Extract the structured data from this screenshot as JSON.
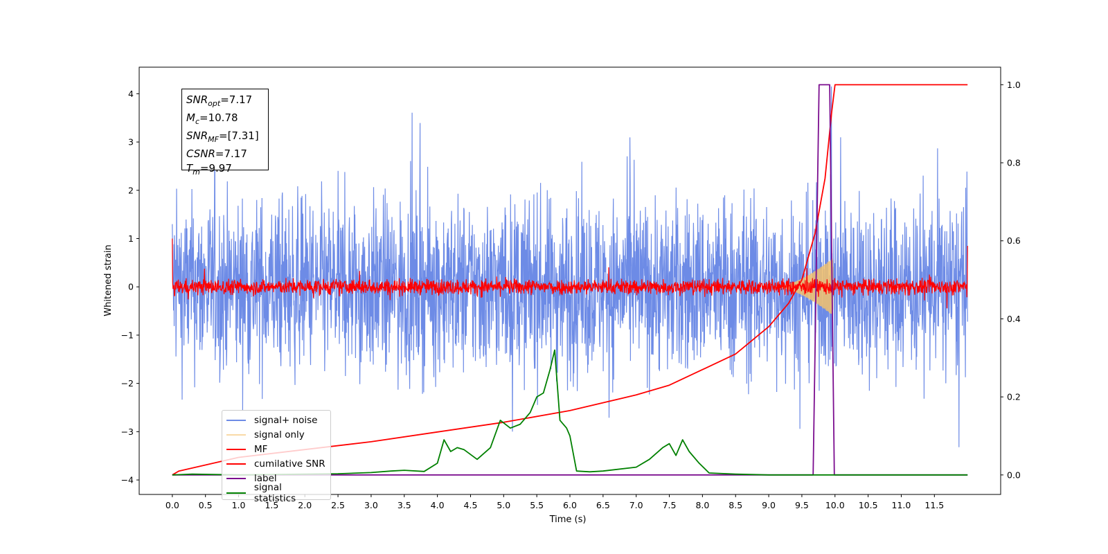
{
  "chart_data": {
    "type": "line",
    "xlabel": "Time (s)",
    "ylabel": "Whitened strain",
    "xlim": [
      -0.5,
      12.5
    ],
    "ylim": [
      -4.3,
      4.55
    ],
    "ylim_right": [
      -0.05,
      1.045
    ],
    "xticks": [
      "0.0",
      "0.5",
      "1.0",
      "1.5",
      "2.0",
      "2.5",
      "3.0",
      "3.5",
      "4.0",
      "4.5",
      "5.0",
      "5.5",
      "6.0",
      "6.5",
      "7.0",
      "7.5",
      "8.0",
      "8.5",
      "9.0",
      "9.5",
      "10.0",
      "10.5",
      "11.0",
      "11.5"
    ],
    "yticks_left": [
      "4",
      "3",
      "2",
      "1",
      "0",
      "−1",
      "−2",
      "−3",
      "−4"
    ],
    "yticks_right": [
      "1.0",
      "0.8",
      "0.6",
      "0.4",
      "0.2",
      "0.0"
    ],
    "legend_position": "lower-left",
    "series": [
      {
        "name": "signal+ noise",
        "axis": "left",
        "color": "#6d8be6",
        "x_range": [
          0.0,
          12.0
        ],
        "band_approx": [
          -2.0,
          2.2
        ],
        "peak_max": 4.15,
        "peak_min": -3.85
      },
      {
        "name": "signal only",
        "axis": "left",
        "color": "#f5c26b",
        "chirp_start": 9.1,
        "chirp_end": 9.97,
        "max_amplitude": 0.6
      },
      {
        "name": "MF",
        "axis": "left",
        "color": "#ff0000",
        "x_range": [
          0.0,
          12.0
        ],
        "band_approx": [
          -0.2,
          0.2
        ],
        "start_value": 1.0,
        "end_value": 0.85
      },
      {
        "name": "cumilative SNR",
        "axis": "right",
        "color": "#ff0000",
        "x": [
          0.0,
          0.1,
          1.0,
          2.0,
          3.0,
          4.0,
          5.0,
          6.0,
          7.0,
          7.5,
          8.0,
          8.5,
          9.0,
          9.3,
          9.5,
          9.7,
          9.85,
          9.95,
          10.0,
          12.0
        ],
        "y": [
          0.0,
          0.01,
          0.045,
          0.065,
          0.085,
          0.11,
          0.135,
          0.165,
          0.205,
          0.23,
          0.27,
          0.31,
          0.38,
          0.44,
          0.5,
          0.62,
          0.76,
          0.93,
          1.0,
          1.0
        ]
      },
      {
        "name": "label",
        "axis": "right",
        "color": "#7b0d8f",
        "x": [
          0.0,
          9.67,
          9.76,
          9.92,
          9.99,
          12.0
        ],
        "y": [
          0.0,
          0.0,
          1.0,
          1.0,
          0.0,
          0.0
        ]
      },
      {
        "name": "signal statistics",
        "axis": "right",
        "color": "#008000",
        "x": [
          0.0,
          0.3,
          1.0,
          2.0,
          2.5,
          3.0,
          3.3,
          3.5,
          3.8,
          4.0,
          4.1,
          4.2,
          4.3,
          4.4,
          4.6,
          4.8,
          4.95,
          5.1,
          5.25,
          5.4,
          5.5,
          5.6,
          5.7,
          5.77,
          5.85,
          5.95,
          6.0,
          6.1,
          6.3,
          6.5,
          7.0,
          7.2,
          7.4,
          7.5,
          7.6,
          7.7,
          7.8,
          7.95,
          8.1,
          8.5,
          9.0,
          9.5,
          10.0,
          11.0,
          12.0
        ],
        "y": [
          0.0,
          0.002,
          0.0,
          0.002,
          0.003,
          0.006,
          0.01,
          0.012,
          0.009,
          0.03,
          0.09,
          0.06,
          0.07,
          0.065,
          0.04,
          0.07,
          0.14,
          0.12,
          0.13,
          0.16,
          0.2,
          0.21,
          0.27,
          0.32,
          0.14,
          0.12,
          0.1,
          0.01,
          0.008,
          0.01,
          0.02,
          0.04,
          0.07,
          0.08,
          0.05,
          0.09,
          0.06,
          0.03,
          0.005,
          0.002,
          0.0,
          0.0,
          0.0,
          0.0,
          0.0
        ]
      }
    ]
  },
  "infobox": {
    "snr_opt_label": "SNR",
    "snr_opt_sub": "opt",
    "snr_opt_value": "=7.17",
    "mc_label": "M",
    "mc_sub": "c",
    "mc_value": "=10.78",
    "snr_mf_label": "SNR",
    "snr_mf_sub": "MF",
    "snr_mf_value": "=[7.31]",
    "csnr_label": "CSNR",
    "csnr_value": "=7.17",
    "tm_label": "T",
    "tm_sub": "m",
    "tm_value": "=9.97"
  }
}
